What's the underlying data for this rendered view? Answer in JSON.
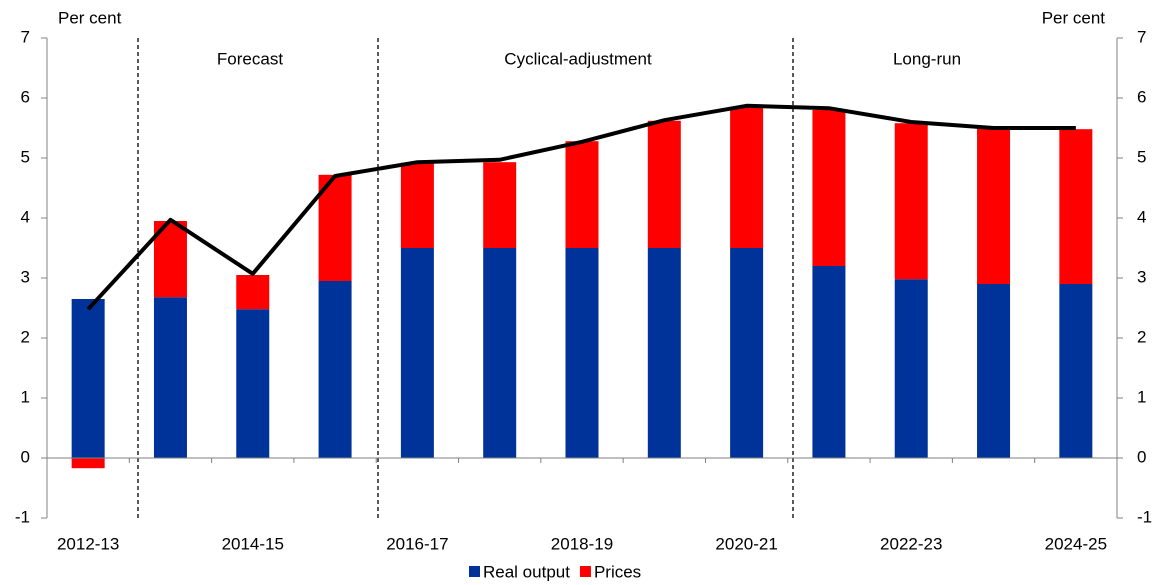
{
  "chart_data": {
    "type": "bar",
    "stacked": true,
    "y_label": "Per cent",
    "y2_label": "Per cent",
    "categories": [
      "2012-13",
      null,
      "2014-15",
      null,
      "2016-17",
      null,
      "2018-19",
      null,
      "2020-21",
      null,
      "2022-23",
      null,
      "2024-25"
    ],
    "series": [
      {
        "name": "Real output",
        "color": "#003399",
        "values": [
          2.65,
          2.68,
          2.48,
          2.95,
          3.5,
          3.5,
          3.5,
          3.5,
          3.5,
          3.2,
          2.98,
          2.9,
          2.9
        ]
      },
      {
        "name": "Prices",
        "color": "#ff0000",
        "values": [
          -0.17,
          1.27,
          0.57,
          1.77,
          1.42,
          1.43,
          1.78,
          2.12,
          2.35,
          2.6,
          2.6,
          2.6,
          2.58
        ]
      }
    ],
    "line": {
      "color": "#000000",
      "values": [
        2.48,
        3.97,
        3.07,
        4.7,
        4.93,
        4.97,
        5.27,
        5.63,
        5.87,
        5.83,
        5.6,
        5.5,
        5.5
      ]
    },
    "annotations": [
      "Forecast",
      "Cyclical-adjustment",
      "Long-run"
    ],
    "ylim": [
      -1,
      7
    ],
    "yticks": [
      -1,
      0,
      1,
      2,
      3,
      4,
      5,
      6,
      7
    ],
    "y2lim": [
      -1,
      7
    ],
    "y2ticks": [
      -1,
      0,
      1,
      2,
      3,
      4,
      5,
      6,
      7
    ],
    "legend": "bottom"
  }
}
